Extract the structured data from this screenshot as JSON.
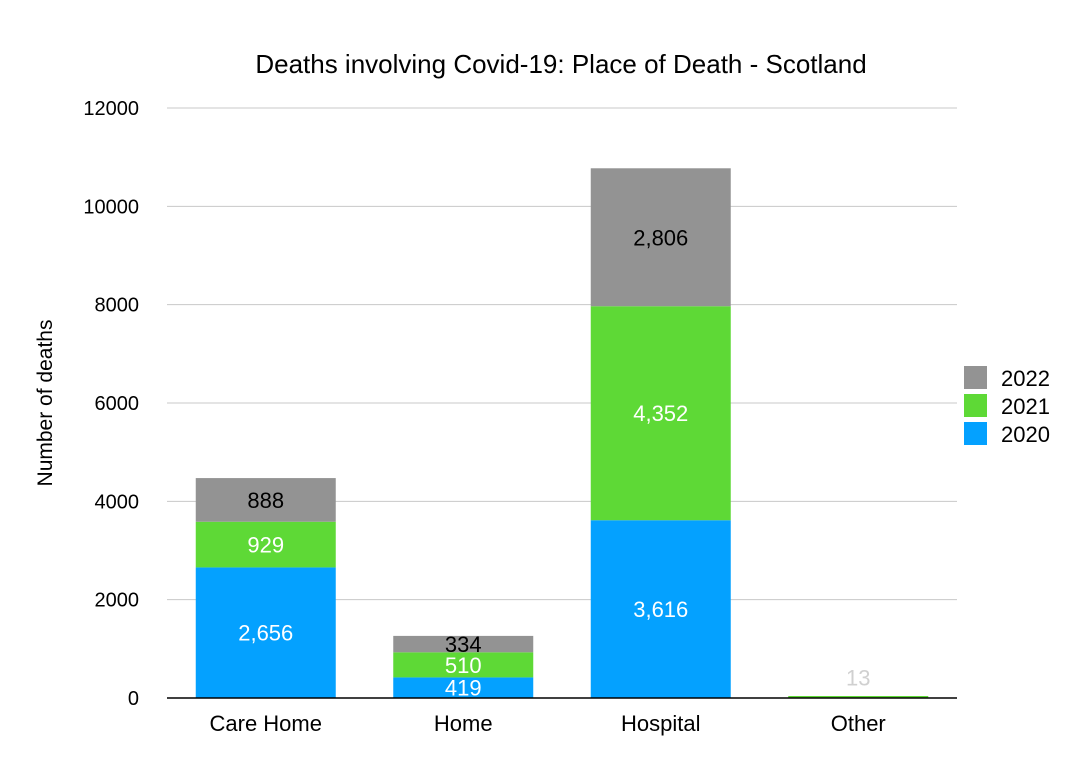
{
  "chart_data": {
    "type": "bar",
    "stacked": true,
    "title": "Deaths involving Covid-19: Place of Death - Scotland",
    "xlabel": "",
    "ylabel": "Number of deaths",
    "ylim": [
      0,
      12000
    ],
    "yticks": [
      0,
      2000,
      4000,
      6000,
      8000,
      10000,
      12000
    ],
    "grid": true,
    "legend_position": "right",
    "categories": [
      "Care Home",
      "Home",
      "Hospital",
      "Other"
    ],
    "series": [
      {
        "name": "2020",
        "color": "#04A1FF",
        "label_color": "#ffffff",
        "values": [
          2656,
          419,
          3616,
          0
        ],
        "labels": [
          "2,656",
          "419",
          "3,616",
          ""
        ]
      },
      {
        "name": "2021",
        "color": "#5ED936",
        "label_color": "#ffffff",
        "values": [
          929,
          510,
          4352,
          0
        ],
        "labels": [
          "929",
          "510",
          "4,352",
          ""
        ]
      },
      {
        "name": "2022",
        "color": "#939393",
        "label_color": "#000000",
        "values": [
          888,
          334,
          2806,
          13
        ],
        "labels": [
          "888",
          "334",
          "2,806",
          "13"
        ]
      }
    ]
  }
}
